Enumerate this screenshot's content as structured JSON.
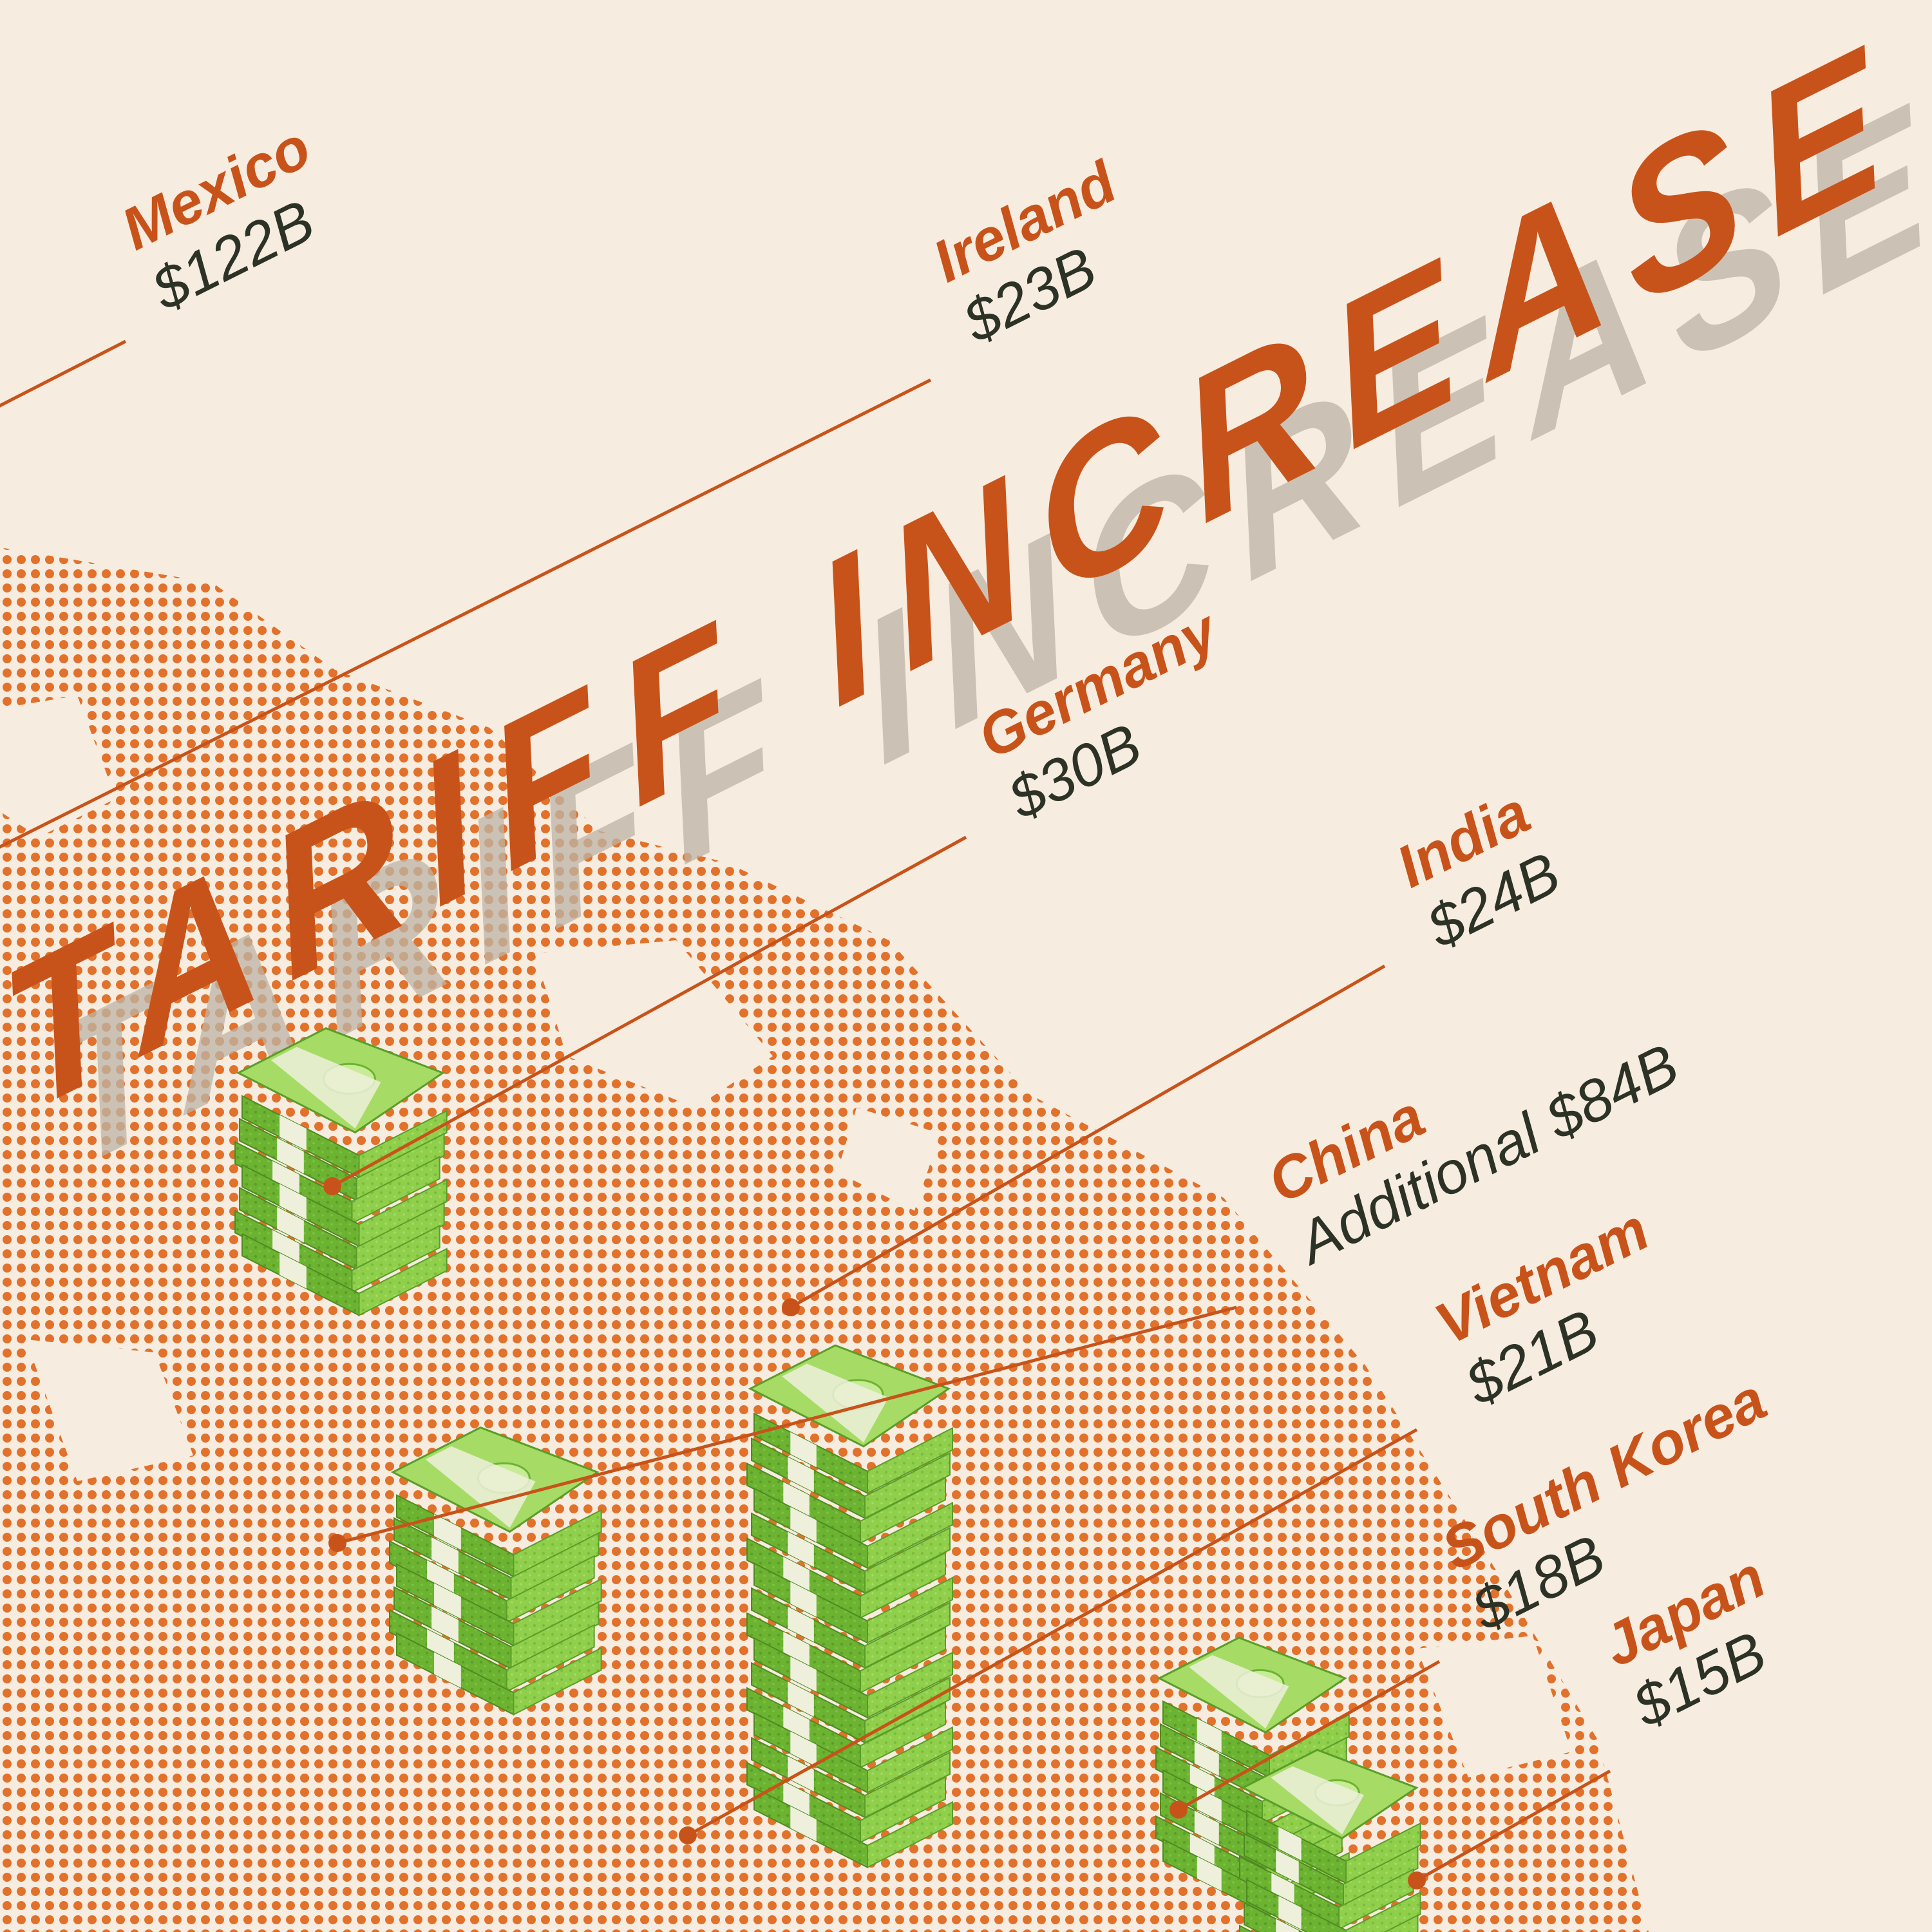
{
  "colors": {
    "background": "#f6ecdf",
    "accent": "#c8531a",
    "dots": "#e06a22",
    "money_light": "#9ad65a",
    "money_dark": "#5fa52c",
    "value_text": "#2c3326",
    "title_shadow": "#bdb5a8"
  },
  "chart_data": {
    "type": "bar",
    "title": "TARIFF INCREASE",
    "categories": [
      "Mexico",
      "Ireland",
      "Germany",
      "India",
      "China",
      "Vietnam",
      "South Korea",
      "Japan"
    ],
    "value_labels": [
      "$122B",
      "$23B",
      "$30B",
      "$24B",
      "Additional $84B",
      "$21B",
      "$18B",
      "$15B"
    ],
    "values": [
      122,
      23,
      30,
      24,
      84,
      21,
      18,
      15
    ],
    "unit": "B USD"
  }
}
